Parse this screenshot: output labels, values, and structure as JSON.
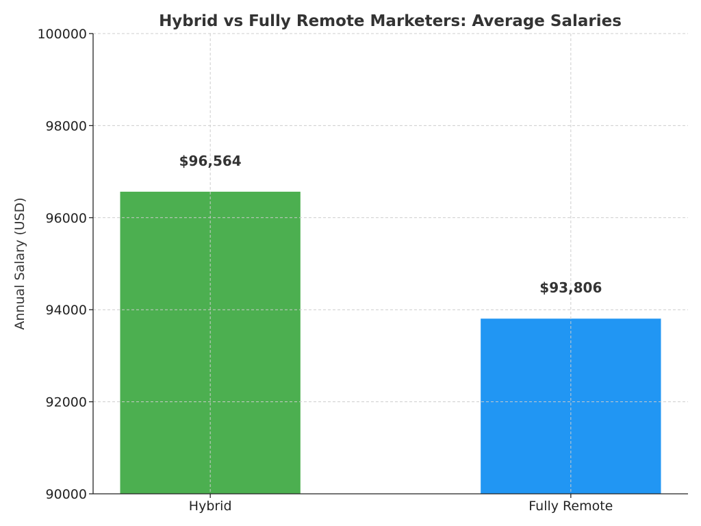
{
  "chart_data": {
    "type": "bar",
    "title": "Hybrid vs Fully Remote Marketers: Average Salaries",
    "xlabel": "",
    "ylabel": "Annual Salary (USD)",
    "categories": [
      "Hybrid",
      "Fully Remote"
    ],
    "values": [
      96564,
      93806
    ],
    "data_labels": [
      "$96,564",
      "$93,806"
    ],
    "colors": [
      "#4caf50",
      "#2196f3"
    ],
    "ylim": [
      90000,
      100000
    ],
    "yticks": [
      90000,
      92000,
      94000,
      96000,
      98000,
      100000
    ],
    "ytick_labels": [
      "90000",
      "92000",
      "94000",
      "96000",
      "98000",
      "100000"
    ],
    "grid": true
  }
}
